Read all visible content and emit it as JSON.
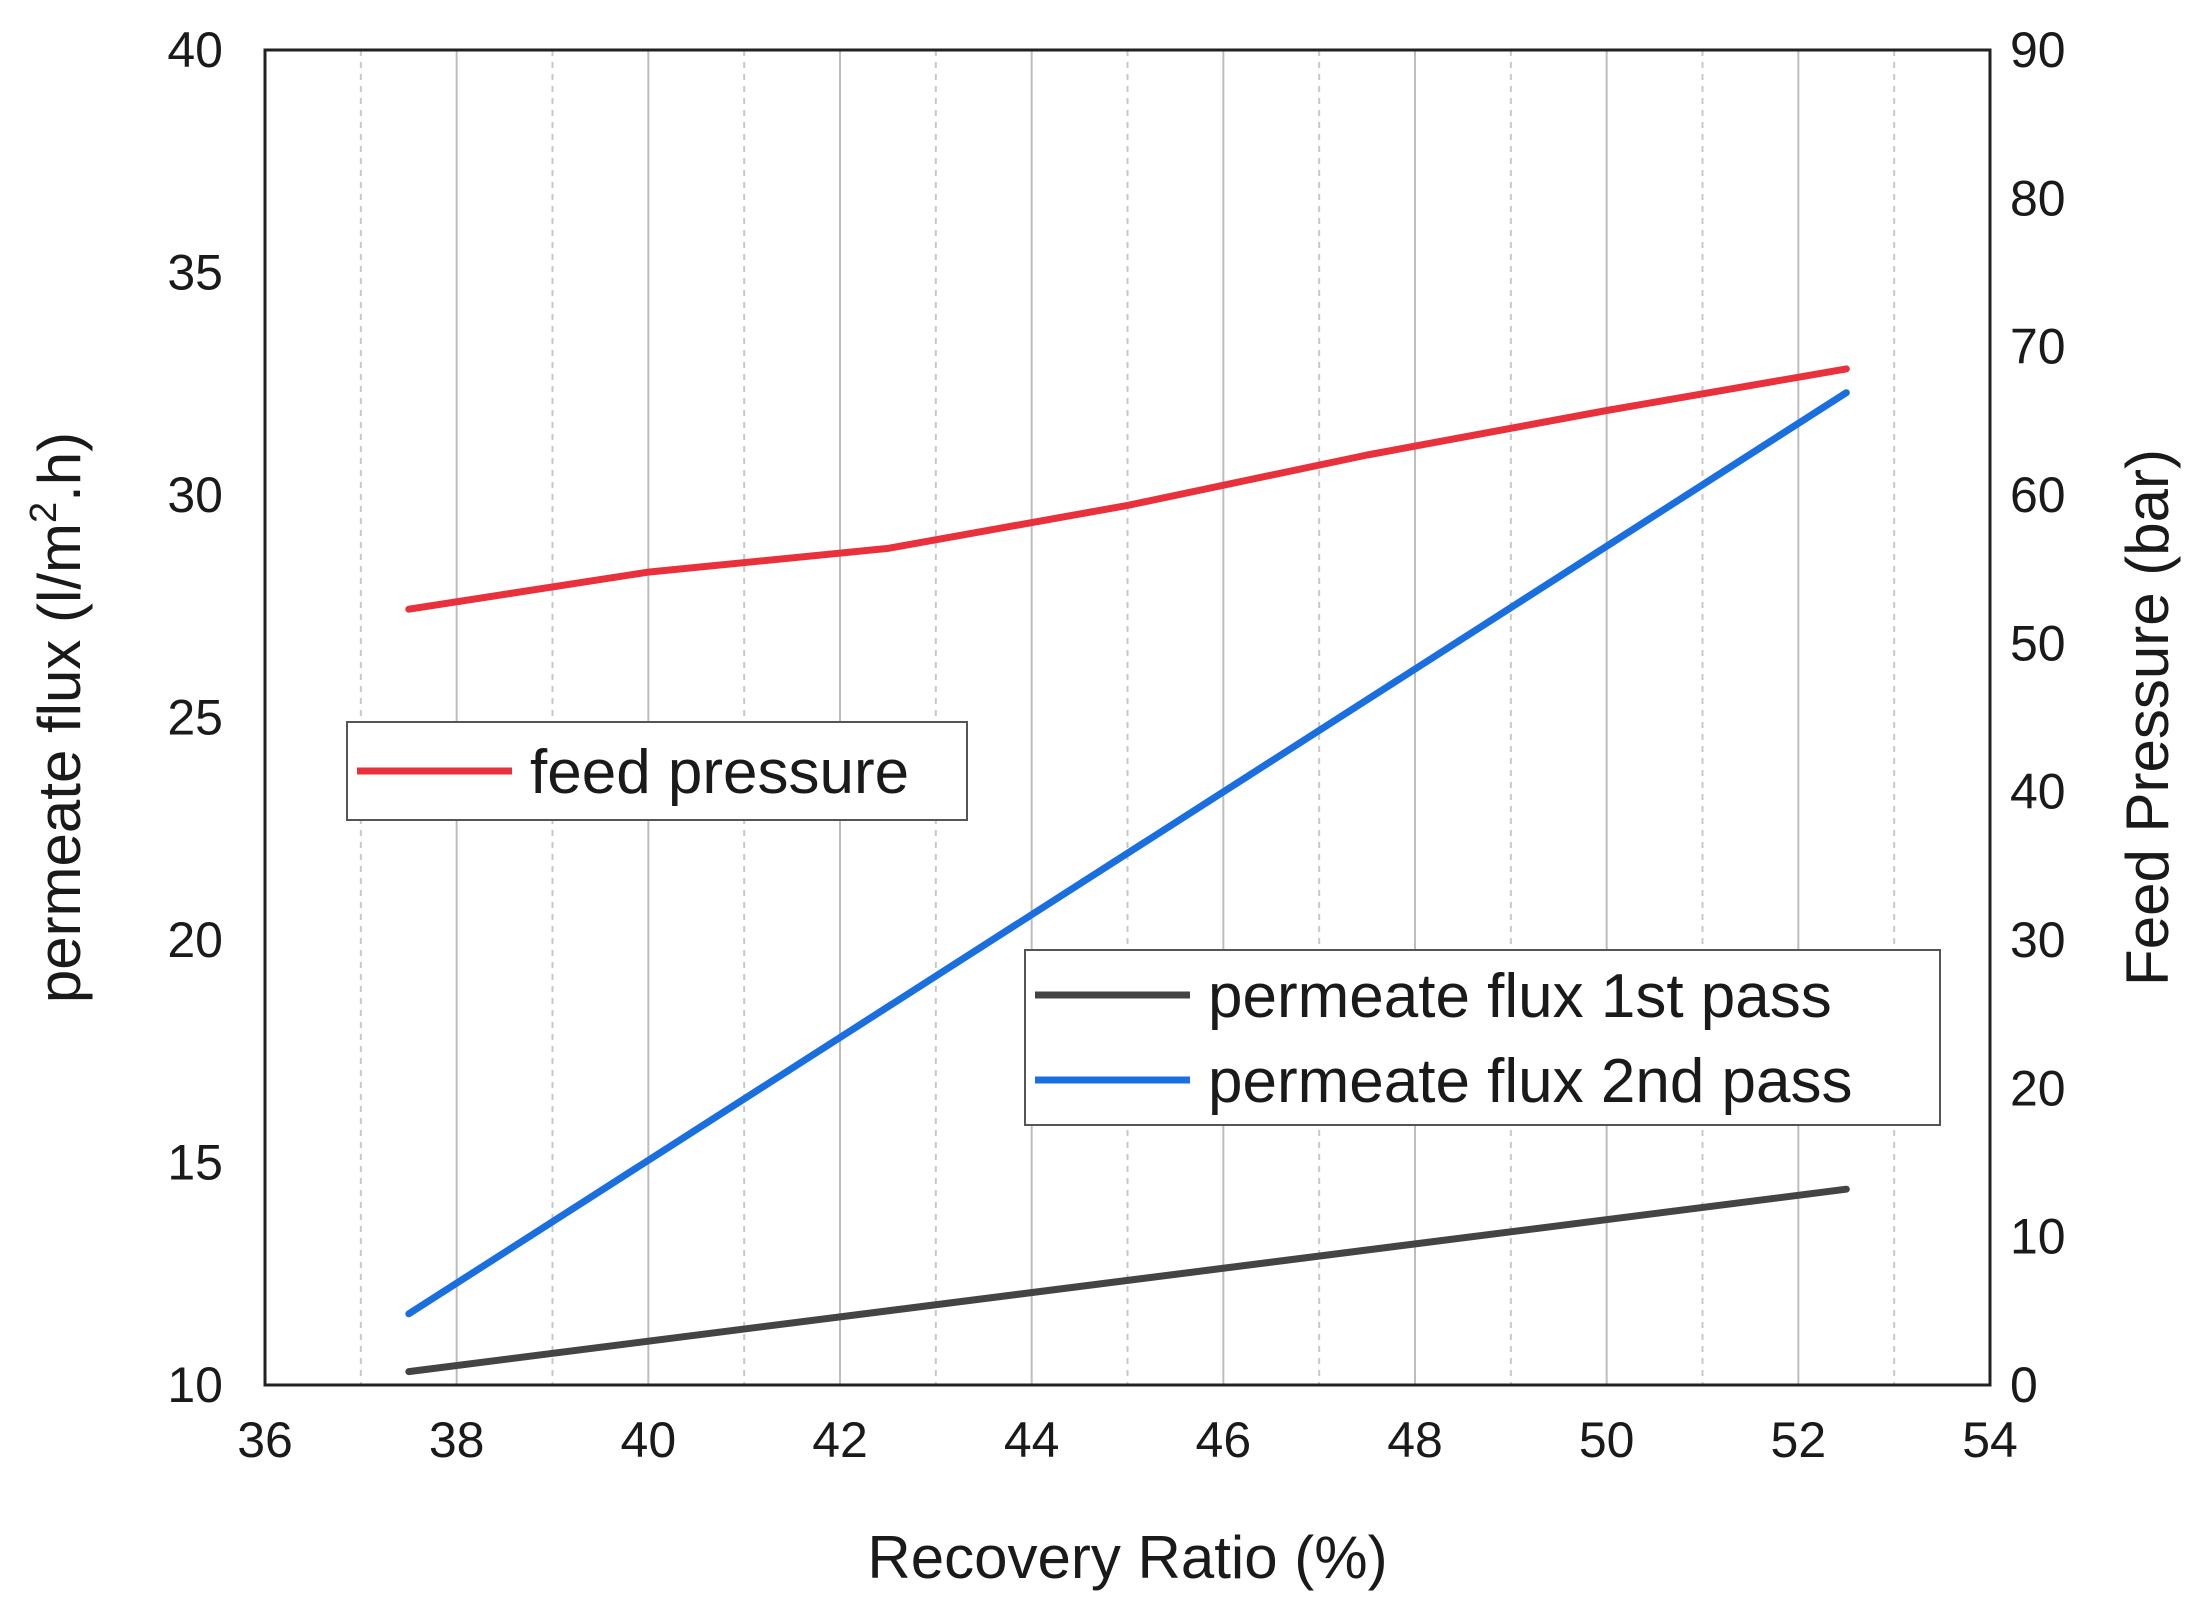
{
  "chart_data": {
    "type": "line",
    "title": "",
    "xlabel": "Recovery Ratio (%)",
    "ylabel": "permeate flux (l/m².h)",
    "ylabel_parts": {
      "prefix": "permeate flux (l/m",
      "sup": "2",
      "suffix": ".h)"
    },
    "y2label": "Feed Pressure (bar)",
    "xlim": [
      36,
      54
    ],
    "ylim": [
      10,
      40
    ],
    "y2lim": [
      0,
      90
    ],
    "x_ticks": [
      36,
      38,
      40,
      42,
      44,
      46,
      48,
      50,
      52,
      54
    ],
    "y_ticks": [
      10,
      15,
      20,
      25,
      30,
      35,
      40
    ],
    "y2_ticks": [
      0,
      10,
      20,
      30,
      40,
      50,
      60,
      70,
      80,
      90
    ],
    "grid": "vertical lines: solid at even x, dashed at odd x",
    "series": [
      {
        "name": "feed pressure",
        "axis": "right",
        "color": "#e8313a",
        "x": [
          37.5,
          40,
          42.5,
          45,
          47.5,
          50,
          52.5
        ],
        "values": [
          52.3,
          54.8,
          56.4,
          59.3,
          62.7,
          65.7,
          68.5
        ]
      },
      {
        "name": "permeate flux 1st pass",
        "axis": "left",
        "color": "#444444",
        "x": [
          37.5,
          52.5
        ],
        "values": [
          10.3,
          14.4
        ]
      },
      {
        "name": "permeate flux 2nd pass",
        "axis": "left",
        "color": "#1a6fe0",
        "x": [
          37.5,
          52.5
        ],
        "values": [
          11.6,
          32.3
        ]
      }
    ],
    "legends": [
      {
        "position": "middle-left",
        "entries": [
          "feed pressure"
        ]
      },
      {
        "position": "lower-right",
        "entries": [
          "permeate flux 1st pass",
          "permeate flux 2nd pass"
        ]
      }
    ]
  }
}
